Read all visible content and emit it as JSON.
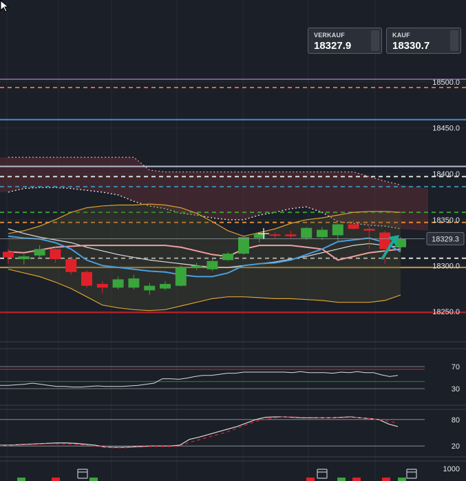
{
  "quotes": {
    "sell": {
      "label": "VERKAUF",
      "value": "18327.9"
    },
    "buy": {
      "label": "KAUF",
      "value": "18330.7"
    }
  },
  "colors": {
    "background": "#1b1f27",
    "candle_up": "#3aa43d",
    "candle_down": "#e0212a",
    "bollinger": "#e0a030",
    "ma_white": "#dcdcdc",
    "ma_pink": "#f0a0a0",
    "ma_blue": "#4a9ee0",
    "ichimoku_cloud": "#6a2f3a",
    "arrow": "#1aaa95"
  },
  "chart_data": [
    {
      "type": "candlestick",
      "title": "",
      "ylim": [
        18230,
        18520
      ],
      "ticks": [
        "18500.0",
        "18450.0",
        "18400.0",
        "18350.0",
        "18300.0",
        "18250.0"
      ],
      "tick_values": [
        18500,
        18450,
        18400,
        18350,
        18300,
        18250
      ],
      "current_price_label": "18329.3",
      "current_price": 18329.3,
      "candles": [
        {
          "o": 18315,
          "c": 18309,
          "h": 18318,
          "l": 18302
        },
        {
          "o": 18307,
          "c": 18310,
          "h": 18312,
          "l": 18301
        },
        {
          "o": 18311,
          "c": 18318,
          "h": 18322,
          "l": 18307
        },
        {
          "o": 18318,
          "c": 18307,
          "h": 18320,
          "l": 18303
        },
        {
          "o": 18307,
          "c": 18293,
          "h": 18310,
          "l": 18290
        },
        {
          "o": 18293,
          "c": 18278,
          "h": 18295,
          "l": 18276
        },
        {
          "o": 18280,
          "c": 18276,
          "h": 18283,
          "l": 18270
        },
        {
          "o": 18276,
          "c": 18285,
          "h": 18288,
          "l": 18274
        },
        {
          "o": 18276,
          "c": 18286,
          "h": 18290,
          "l": 18274
        },
        {
          "o": 18273,
          "c": 18278,
          "h": 18281,
          "l": 18268
        },
        {
          "o": 18275,
          "c": 18280,
          "h": 18283,
          "l": 18273
        },
        {
          "o": 18278,
          "c": 18298,
          "h": 18300,
          "l": 18277
        },
        {
          "o": 18298,
          "c": 18300,
          "h": 18303,
          "l": 18295
        },
        {
          "o": 18296,
          "c": 18305,
          "h": 18307,
          "l": 18294
        },
        {
          "o": 18306,
          "c": 18313,
          "h": 18315,
          "l": 18305
        },
        {
          "o": 18313,
          "c": 18331,
          "h": 18333,
          "l": 18312
        },
        {
          "o": 18330,
          "c": 18335,
          "h": 18336,
          "l": 18325
        },
        {
          "o": 18334,
          "c": 18333,
          "h": 18336,
          "l": 18330
        },
        {
          "o": 18334,
          "c": 18332,
          "h": 18338,
          "l": 18329
        },
        {
          "o": 18330,
          "c": 18341,
          "h": 18342,
          "l": 18328
        },
        {
          "o": 18331,
          "c": 18339,
          "h": 18342,
          "l": 18328
        },
        {
          "o": 18333,
          "c": 18345,
          "h": 18346,
          "l": 18326
        },
        {
          "o": 18345,
          "c": 18340,
          "h": 18350,
          "l": 18339
        },
        {
          "o": 18340,
          "c": 18338,
          "h": 18343,
          "l": 18318
        },
        {
          "o": 18336,
          "c": 18318,
          "h": 18338,
          "l": 18302
        },
        {
          "o": 18320,
          "c": 18329,
          "h": 18331,
          "l": 18316
        }
      ],
      "moving_average_white": [
        18340,
        18335,
        18331,
        18328,
        18325,
        18320,
        18316,
        18312,
        18309,
        18306,
        18304,
        18302,
        18300,
        18298,
        18298,
        18300,
        18302,
        18304,
        18307,
        18310,
        18314,
        18318,
        18322,
        18324,
        18322,
        18320
      ],
      "moving_average_pink": [
        18315,
        18314,
        18317,
        18320,
        18321,
        18322,
        18322,
        18322,
        18322,
        18322,
        18322,
        18320,
        18316,
        18312,
        18310,
        18318,
        18322,
        18322,
        18322,
        18320,
        18318,
        18306,
        18310,
        18314,
        18316,
        18318
      ],
      "moving_average_blue": [
        18332,
        18330,
        18329,
        18325,
        18318,
        18306,
        18300,
        18298,
        18296,
        18294,
        18293,
        18290,
        18288,
        18288,
        18292,
        18300,
        18302,
        18303,
        18306,
        18312,
        18318,
        18326,
        18328,
        18330,
        18325,
        18315
      ],
      "bollinger_upper": [
        18335,
        18338,
        18343,
        18350,
        18358,
        18363,
        18365,
        18366,
        18366,
        18367,
        18366,
        18363,
        18357,
        18348,
        18338,
        18332,
        18336,
        18340,
        18346,
        18350,
        18352,
        18355,
        18358,
        18359,
        18359,
        18358
      ],
      "bollinger_lower": [
        18296,
        18292,
        18288,
        18282,
        18275,
        18266,
        18257,
        18254,
        18252,
        18251,
        18252,
        18256,
        18260,
        18264,
        18266,
        18266,
        18265,
        18264,
        18264,
        18263,
        18262,
        18260,
        18260,
        18260,
        18262,
        18268
      ],
      "cloud_upper": [
        18418,
        18418,
        18418,
        18418,
        18418,
        18418,
        18418,
        18418,
        18418,
        18404,
        18402,
        18402,
        18402,
        18402,
        18402,
        18402,
        18402,
        18402,
        18402,
        18402,
        18402,
        18402,
        18402,
        18397,
        18392,
        18388
      ],
      "cloud_lower": [
        18380,
        18384,
        18385,
        18385,
        18384,
        18382,
        18380,
        18377,
        18370,
        18365,
        18362,
        18357,
        18355,
        18352,
        18350,
        18350,
        18355,
        18358,
        18362,
        18364,
        18358,
        18348,
        18346,
        18344,
        18343,
        18340
      ],
      "horizontal_levels": [
        {
          "value": 18503,
          "style": "solid",
          "color": "#7a5a8a"
        },
        {
          "value": 18494,
          "style": "dashed",
          "color": "#e06a30"
        },
        {
          "value": 18459,
          "style": "solid",
          "color": "#4a90d0"
        },
        {
          "value": 18408,
          "style": "solid",
          "color": "#b4bcd0"
        },
        {
          "value": 18397,
          "style": "dashed",
          "color": "#dcdcdc"
        },
        {
          "value": 18386,
          "style": "dashed",
          "color": "#3a8ab0"
        },
        {
          "value": 18358,
          "style": "dashed",
          "color": "#3a9a3a"
        },
        {
          "value": 18347,
          "style": "dashed",
          "color": "#e08a30"
        },
        {
          "value": 18308,
          "style": "dashed",
          "color": "#dcdcdc"
        },
        {
          "value": 18298,
          "style": "solid",
          "color": "#c89a30"
        },
        {
          "value": 18249,
          "style": "solid",
          "color": "#c0202a"
        }
      ]
    },
    {
      "type": "line",
      "title": "",
      "ylim": [
        0,
        100
      ],
      "ticks": [
        "70",
        "30"
      ],
      "tick_values": [
        70,
        30
      ],
      "level_lines": [
        65,
        43
      ],
      "series": [
        {
          "values": [
            36,
            36,
            37,
            38,
            40,
            38,
            36,
            34,
            34,
            33,
            33,
            34,
            35,
            34,
            34,
            34,
            35,
            36,
            38,
            40,
            48,
            48,
            47,
            49,
            52,
            54,
            54,
            56,
            58,
            58,
            60,
            60,
            60,
            60,
            60,
            60,
            59,
            61,
            59,
            59,
            59,
            58,
            60,
            59,
            61,
            59,
            59,
            55,
            52,
            54
          ]
        }
      ]
    },
    {
      "type": "line",
      "title": "",
      "ylim": [
        0,
        100
      ],
      "ticks": [
        "80",
        "20"
      ],
      "tick_values": [
        80,
        20
      ],
      "series": [
        {
          "values": [
            22,
            22,
            23,
            24,
            25,
            26,
            27,
            27,
            26,
            24,
            22,
            18,
            17,
            17,
            18,
            19,
            20,
            20,
            20,
            22,
            35,
            40,
            46,
            52,
            58,
            64,
            72,
            80,
            85,
            86,
            86,
            85,
            84,
            84,
            84,
            84,
            85,
            86,
            84,
            82,
            80,
            70,
            64
          ]
        },
        {
          "values": [
            21,
            21,
            22,
            23,
            24,
            25,
            25,
            25,
            24,
            22,
            20,
            18,
            16,
            16,
            17,
            18,
            19,
            19,
            19,
            20,
            28,
            34,
            40,
            46,
            52,
            60,
            68,
            76,
            80,
            84,
            86,
            86,
            85,
            85,
            84,
            84,
            84,
            85,
            84,
            82,
            80,
            76,
            72
          ]
        }
      ]
    },
    {
      "type": "bar",
      "title": "",
      "ticks": [
        "1000"
      ],
      "tick_values": [
        1000
      ]
    }
  ]
}
